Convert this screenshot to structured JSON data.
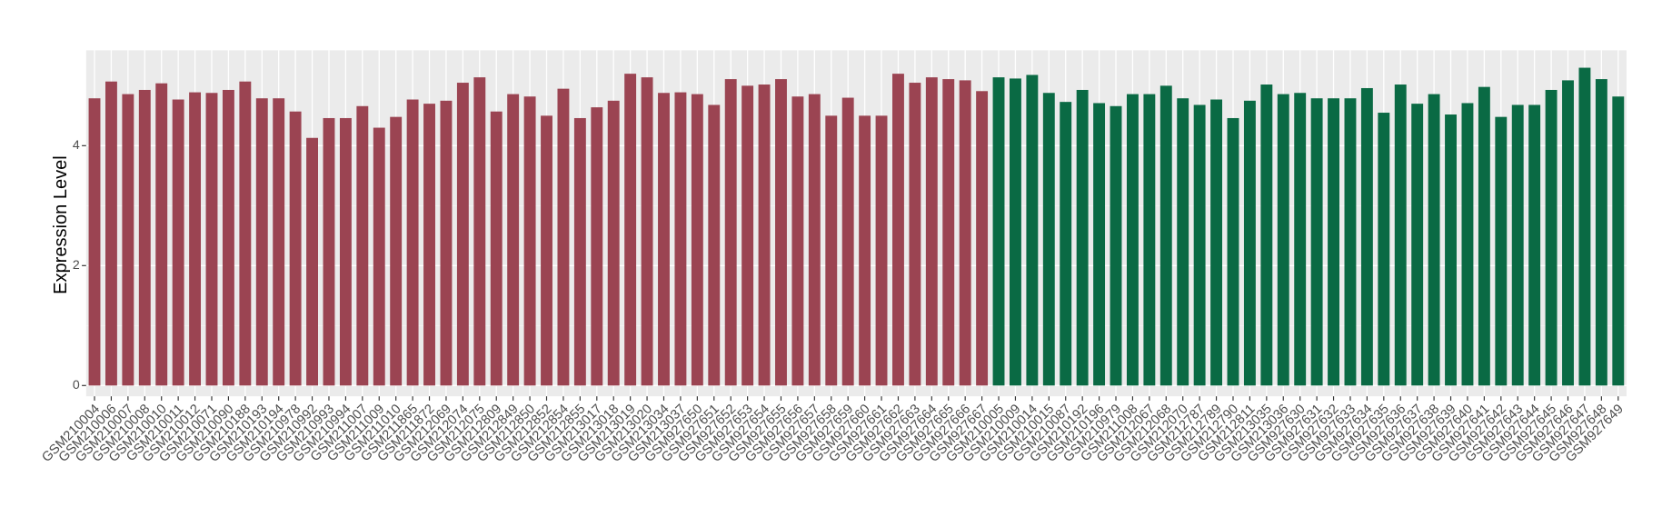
{
  "chart_data": {
    "type": "bar",
    "y_label": "Expression Level",
    "categories": [
      "GSM210004",
      "GSM210006",
      "GSM210007",
      "GSM210008",
      "GSM210010",
      "GSM210011",
      "GSM210012",
      "GSM210071",
      "GSM210090",
      "GSM210188",
      "GSM210193",
      "GSM210194",
      "GSM210978",
      "GSM210992",
      "GSM210993",
      "GSM210994",
      "GSM211007",
      "GSM211009",
      "GSM211010",
      "GSM211865",
      "GSM211872",
      "GSM212069",
      "GSM212074",
      "GSM212075",
      "GSM212809",
      "GSM212849",
      "GSM212850",
      "GSM212852",
      "GSM212854",
      "GSM212855",
      "GSM213017",
      "GSM213018",
      "GSM213019",
      "GSM213020",
      "GSM213034",
      "GSM213037",
      "GSM927650",
      "GSM927651",
      "GSM927652",
      "GSM927653",
      "GSM927654",
      "GSM927655",
      "GSM927656",
      "GSM927657",
      "GSM927658",
      "GSM927659",
      "GSM927660",
      "GSM927661",
      "GSM927662",
      "GSM927663",
      "GSM927664",
      "GSM927665",
      "GSM927666",
      "GSM927667",
      "GSM210005",
      "GSM210009",
      "GSM210014",
      "GSM210015",
      "GSM210087",
      "GSM210192",
      "GSM210196",
      "GSM210979",
      "GSM211008",
      "GSM212067",
      "GSM212068",
      "GSM212070",
      "GSM212787",
      "GSM212789",
      "GSM212790",
      "GSM212811",
      "GSM213035",
      "GSM213036",
      "GSM927630",
      "GSM927631",
      "GSM927632",
      "GSM927633",
      "GSM927634",
      "GSM927635",
      "GSM927636",
      "GSM927637",
      "GSM927638",
      "GSM927639",
      "GSM927640",
      "GSM927641",
      "GSM927642",
      "GSM927643",
      "GSM927644",
      "GSM927645",
      "GSM927646",
      "GSM927647",
      "GSM927648",
      "GSM927649"
    ],
    "values": [
      4.79,
      5.07,
      4.86,
      4.93,
      5.04,
      4.77,
      4.89,
      4.88,
      4.93,
      5.07,
      4.79,
      4.79,
      4.57,
      4.13,
      4.46,
      4.46,
      4.66,
      4.3,
      4.48,
      4.77,
      4.7,
      4.75,
      5.05,
      5.14,
      4.57,
      4.86,
      4.82,
      4.5,
      4.95,
      4.46,
      4.64,
      4.75,
      5.2,
      5.14,
      4.88,
      4.89,
      4.86,
      4.68,
      5.11,
      5.0,
      5.02,
      5.11,
      4.82,
      4.86,
      4.5,
      4.8,
      4.5,
      4.5,
      5.2,
      5.05,
      5.14,
      5.11,
      5.09,
      4.91,
      5.14,
      5.12,
      5.18,
      4.88,
      4.73,
      4.93,
      4.71,
      4.66,
      4.86,
      4.86,
      5.0,
      4.79,
      4.68,
      4.77,
      4.46,
      4.75,
      5.02,
      4.86,
      4.88,
      4.79,
      4.79,
      4.79,
      4.96,
      4.55,
      5.02,
      4.7,
      4.86,
      4.52,
      4.71,
      4.98,
      4.48,
      4.68,
      4.68,
      4.93,
      5.09,
      5.3,
      5.11,
      4.82
    ],
    "colors": [
      "#9b4452",
      "#9b4452",
      "#9b4452",
      "#9b4452",
      "#9b4452",
      "#9b4452",
      "#9b4452",
      "#9b4452",
      "#9b4452",
      "#9b4452",
      "#9b4452",
      "#9b4452",
      "#9b4452",
      "#9b4452",
      "#9b4452",
      "#9b4452",
      "#9b4452",
      "#9b4452",
      "#9b4452",
      "#9b4452",
      "#9b4452",
      "#9b4452",
      "#9b4452",
      "#9b4452",
      "#9b4452",
      "#9b4452",
      "#9b4452",
      "#9b4452",
      "#9b4452",
      "#9b4452",
      "#9b4452",
      "#9b4452",
      "#9b4452",
      "#9b4452",
      "#9b4452",
      "#9b4452",
      "#9b4452",
      "#9b4452",
      "#9b4452",
      "#9b4452",
      "#9b4452",
      "#9b4452",
      "#9b4452",
      "#9b4452",
      "#9b4452",
      "#9b4452",
      "#9b4452",
      "#9b4452",
      "#9b4452",
      "#9b4452",
      "#9b4452",
      "#9b4452",
      "#9b4452",
      "#9b4452",
      "#0a6a44",
      "#0a6a44",
      "#0a6a44",
      "#0a6a44",
      "#0a6a44",
      "#0a6a44",
      "#0a6a44",
      "#0a6a44",
      "#0a6a44",
      "#0a6a44",
      "#0a6a44",
      "#0a6a44",
      "#0a6a44",
      "#0a6a44",
      "#0a6a44",
      "#0a6a44",
      "#0a6a44",
      "#0a6a44",
      "#0a6a44",
      "#0a6a44",
      "#0a6a44",
      "#0a6a44",
      "#0a6a44",
      "#0a6a44",
      "#0a6a44",
      "#0a6a44",
      "#0a6a44",
      "#0a6a44",
      "#0a6a44",
      "#0a6a44",
      "#0a6a44",
      "#0a6a44",
      "#0a6a44",
      "#0a6a44",
      "#0a6a44",
      "#0a6a44",
      "#0a6a44",
      "#0a6a44"
    ],
    "ylim": [
      -0.18,
      5.59
    ],
    "yticks": [
      0,
      2,
      4
    ],
    "grid": true
  }
}
